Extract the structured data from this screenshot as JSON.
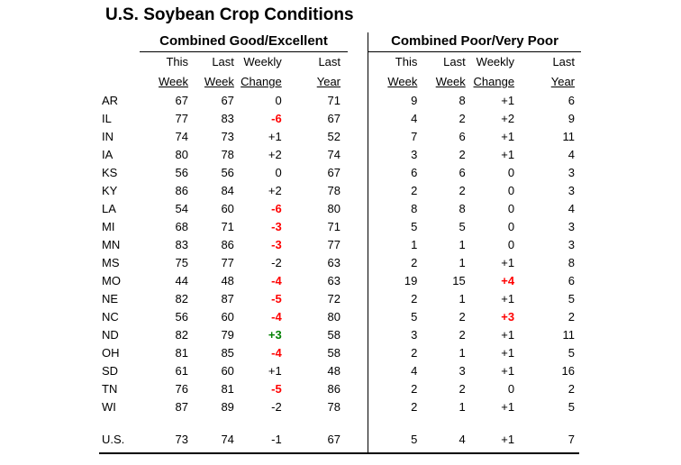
{
  "title": "U.S. Soybean Crop Conditions",
  "styles": {
    "background": "#FFFFFF",
    "text": "#000000",
    "rule": "#000000",
    "change_colors": {
      "red": "#FF0000",
      "green": "#008000"
    }
  },
  "chart_data": {
    "type": "table",
    "title": "U.S. Soybean Crop Conditions",
    "sections": [
      {
        "header": "Combined Good/Excellent",
        "columns": [
          "This Week",
          "Last Week",
          "Weekly Change",
          "Last Year"
        ]
      },
      {
        "header": "Combined Poor/Very Poor",
        "columns": [
          "This Week",
          "Last Week",
          "Weekly Change",
          "Last Year"
        ]
      }
    ],
    "rows": [
      {
        "state": "AR",
        "good": {
          "this_week": "67",
          "last_week": "67",
          "change": "0",
          "last_year": "71"
        },
        "poor": {
          "this_week": "9",
          "last_week": "8",
          "change": "+1",
          "last_year": "6"
        }
      },
      {
        "state": "IL",
        "good": {
          "this_week": "77",
          "last_week": "83",
          "change": "-6",
          "change_color": "red",
          "last_year": "67"
        },
        "poor": {
          "this_week": "4",
          "last_week": "2",
          "change": "+2",
          "last_year": "9"
        }
      },
      {
        "state": "IN",
        "good": {
          "this_week": "74",
          "last_week": "73",
          "change": "+1",
          "last_year": "52"
        },
        "poor": {
          "this_week": "7",
          "last_week": "6",
          "change": "+1",
          "last_year": "11"
        }
      },
      {
        "state": "IA",
        "good": {
          "this_week": "80",
          "last_week": "78",
          "change": "+2",
          "last_year": "74"
        },
        "poor": {
          "this_week": "3",
          "last_week": "2",
          "change": "+1",
          "last_year": "4"
        }
      },
      {
        "state": "KS",
        "good": {
          "this_week": "56",
          "last_week": "56",
          "change": "0",
          "last_year": "67"
        },
        "poor": {
          "this_week": "6",
          "last_week": "6",
          "change": "0",
          "last_year": "3"
        }
      },
      {
        "state": "KY",
        "good": {
          "this_week": "86",
          "last_week": "84",
          "change": "+2",
          "last_year": "78"
        },
        "poor": {
          "this_week": "2",
          "last_week": "2",
          "change": "0",
          "last_year": "3"
        }
      },
      {
        "state": "LA",
        "good": {
          "this_week": "54",
          "last_week": "60",
          "change": "-6",
          "change_color": "red",
          "last_year": "80"
        },
        "poor": {
          "this_week": "8",
          "last_week": "8",
          "change": "0",
          "last_year": "4"
        }
      },
      {
        "state": "MI",
        "good": {
          "this_week": "68",
          "last_week": "71",
          "change": "-3",
          "change_color": "red",
          "last_year": "71"
        },
        "poor": {
          "this_week": "5",
          "last_week": "5",
          "change": "0",
          "last_year": "3"
        }
      },
      {
        "state": "MN",
        "good": {
          "this_week": "83",
          "last_week": "86",
          "change": "-3",
          "change_color": "red",
          "last_year": "77"
        },
        "poor": {
          "this_week": "1",
          "last_week": "1",
          "change": "0",
          "last_year": "3"
        }
      },
      {
        "state": "MS",
        "good": {
          "this_week": "75",
          "last_week": "77",
          "change": "-2",
          "last_year": "63"
        },
        "poor": {
          "this_week": "2",
          "last_week": "1",
          "change": "+1",
          "last_year": "8"
        }
      },
      {
        "state": "MO",
        "good": {
          "this_week": "44",
          "last_week": "48",
          "change": "-4",
          "change_color": "red",
          "last_year": "63"
        },
        "poor": {
          "this_week": "19",
          "last_week": "15",
          "change": "+4",
          "change_color": "red",
          "last_year": "6"
        }
      },
      {
        "state": "NE",
        "good": {
          "this_week": "82",
          "last_week": "87",
          "change": "-5",
          "change_color": "red",
          "last_year": "72"
        },
        "poor": {
          "this_week": "2",
          "last_week": "1",
          "change": "+1",
          "last_year": "5"
        }
      },
      {
        "state": "NC",
        "good": {
          "this_week": "56",
          "last_week": "60",
          "change": "-4",
          "change_color": "red",
          "last_year": "80"
        },
        "poor": {
          "this_week": "5",
          "last_week": "2",
          "change": "+3",
          "change_color": "red",
          "last_year": "2"
        }
      },
      {
        "state": "ND",
        "good": {
          "this_week": "82",
          "last_week": "79",
          "change": "+3",
          "change_color": "green",
          "last_year": "58"
        },
        "poor": {
          "this_week": "3",
          "last_week": "2",
          "change": "+1",
          "last_year": "11"
        }
      },
      {
        "state": "OH",
        "good": {
          "this_week": "81",
          "last_week": "85",
          "change": "-4",
          "change_color": "red",
          "last_year": "58"
        },
        "poor": {
          "this_week": "2",
          "last_week": "1",
          "change": "+1",
          "last_year": "5"
        }
      },
      {
        "state": "SD",
        "good": {
          "this_week": "61",
          "last_week": "60",
          "change": "+1",
          "last_year": "48"
        },
        "poor": {
          "this_week": "4",
          "last_week": "3",
          "change": "+1",
          "last_year": "16"
        }
      },
      {
        "state": "TN",
        "good": {
          "this_week": "76",
          "last_week": "81",
          "change": "-5",
          "change_color": "red",
          "last_year": "86"
        },
        "poor": {
          "this_week": "2",
          "last_week": "2",
          "change": "0",
          "last_year": "2"
        }
      },
      {
        "state": "WI",
        "good": {
          "this_week": "87",
          "last_week": "89",
          "change": "-2",
          "last_year": "78"
        },
        "poor": {
          "this_week": "2",
          "last_week": "1",
          "change": "+1",
          "last_year": "5"
        }
      }
    ],
    "us": {
      "state": "U.S.",
      "good": {
        "this_week": "73",
        "last_week": "74",
        "change": "-1",
        "last_year": "67"
      },
      "poor": {
        "this_week": "5",
        "last_week": "4",
        "change": "+1",
        "last_year": "7"
      }
    }
  }
}
